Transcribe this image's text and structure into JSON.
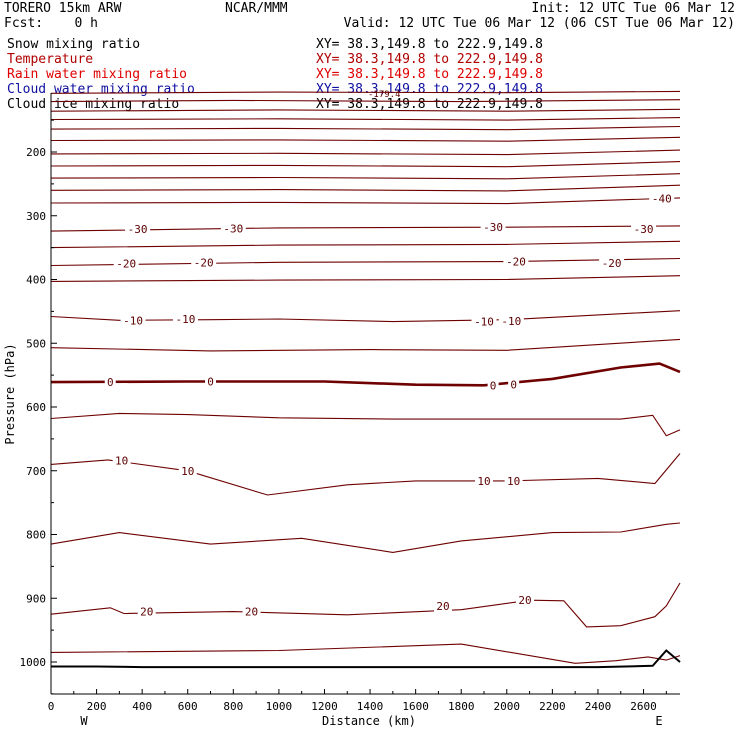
{
  "header": {
    "model": "TORERO  15km ARW",
    "center": "NCAR/MMM",
    "init": "Init: 12 UTC Tue 06 Mar 12",
    "fcst": "Fcst:    0 h",
    "valid": "Valid: 12 UTC Tue 06 Mar 12 (06 CST Tue 06 Mar 12)"
  },
  "legend": [
    {
      "name": "Snow mixing ratio",
      "xy": "XY=  38.3,149.8 to 222.9,149.8",
      "color": "#000000"
    },
    {
      "name": "Temperature",
      "xy": "XY=  38.3,149.8 to 222.9,149.8",
      "color": "#b00000"
    },
    {
      "name": "Rain water mixing ratio",
      "xy": "XY=  38.3,149.8 to 222.9,149.8",
      "color": "#e00000"
    },
    {
      "name": "Cloud water mixing ratio",
      "xy": "XY=  38.3,149.8 to 222.9,149.8",
      "color": "#1010a0"
    },
    {
      "name": "Cloud ice mixing ratio",
      "xy": "XY=  38.3,149.8 to 222.9,149.8",
      "color": "#000000"
    }
  ],
  "legend_overlap_label": "-179.4",
  "chart_data": {
    "type": "line",
    "xlabel": "Distance (km)",
    "ylabel": "Pressure (hPa)",
    "x_end_labels": {
      "left": "W",
      "right": "E"
    },
    "xlim": [
      0,
      2760
    ],
    "ylim_hpa": [
      1050,
      100
    ],
    "xticks": [
      0,
      200,
      400,
      600,
      800,
      1000,
      1200,
      1400,
      1600,
      1800,
      2000,
      2200,
      2400,
      2600
    ],
    "yticks": [
      200,
      300,
      400,
      500,
      600,
      700,
      800,
      900,
      1000
    ],
    "color_contour": "#6e0000",
    "color_terrain": "#000000",
    "zero_isotherm_bold": true,
    "isotherms": [
      {
        "t": -60,
        "pts": [
          [
            0,
            108
          ],
          [
            1000,
            106
          ],
          [
            2000,
            107
          ],
          [
            2760,
            105
          ]
        ]
      },
      {
        "t": -58,
        "pts": [
          [
            0,
            121
          ],
          [
            800,
            119
          ],
          [
            1800,
            121
          ],
          [
            2760,
            118
          ]
        ]
      },
      {
        "t": -56,
        "pts": [
          [
            0,
            136
          ],
          [
            1000,
            134
          ],
          [
            2000,
            136
          ],
          [
            2760,
            133
          ]
        ]
      },
      {
        "t": -54,
        "pts": [
          [
            0,
            149
          ],
          [
            1000,
            148
          ],
          [
            2000,
            150
          ],
          [
            2760,
            146
          ]
        ]
      },
      {
        "t": -52,
        "pts": [
          [
            0,
            164
          ],
          [
            1000,
            163
          ],
          [
            2000,
            165
          ],
          [
            2760,
            160
          ]
        ]
      },
      {
        "t": -50,
        "pts": [
          [
            0,
            182
          ],
          [
            1000,
            181
          ],
          [
            2000,
            183
          ],
          [
            2760,
            177
          ]
        ]
      },
      {
        "t": -48,
        "pts": [
          [
            0,
            203
          ],
          [
            1000,
            202
          ],
          [
            2000,
            204
          ],
          [
            2760,
            197
          ]
        ]
      },
      {
        "t": -46,
        "pts": [
          [
            0,
            222
          ],
          [
            1000,
            221
          ],
          [
            2000,
            223
          ],
          [
            2760,
            215
          ]
        ]
      },
      {
        "t": -44,
        "pts": [
          [
            0,
            241
          ],
          [
            1000,
            240
          ],
          [
            2000,
            242
          ],
          [
            2760,
            234
          ]
        ]
      },
      {
        "t": -42,
        "pts": [
          [
            0,
            260
          ],
          [
            1000,
            259
          ],
          [
            2000,
            261
          ],
          [
            2760,
            252
          ]
        ]
      },
      {
        "t": -40,
        "pts": [
          [
            0,
            280
          ],
          [
            1000,
            279
          ],
          [
            2000,
            281
          ],
          [
            2760,
            272
          ]
        ]
      },
      {
        "t": -30,
        "pts": [
          [
            0,
            324
          ],
          [
            1000,
            319
          ],
          [
            2000,
            318
          ],
          [
            2760,
            316
          ]
        ]
      },
      {
        "t": -25,
        "pts": [
          [
            0,
            350
          ],
          [
            1000,
            346
          ],
          [
            2000,
            345
          ],
          [
            2760,
            340
          ]
        ]
      },
      {
        "t": -20,
        "pts": [
          [
            0,
            378
          ],
          [
            1000,
            373
          ],
          [
            2000,
            372
          ],
          [
            2760,
            367
          ]
        ]
      },
      {
        "t": -15,
        "pts": [
          [
            0,
            403
          ],
          [
            1000,
            401
          ],
          [
            2000,
            400
          ],
          [
            2760,
            394
          ]
        ]
      },
      {
        "t": -10,
        "pts": [
          [
            0,
            458
          ],
          [
            300,
            464
          ],
          [
            700,
            463
          ],
          [
            1000,
            462
          ],
          [
            1500,
            466
          ],
          [
            2000,
            463
          ],
          [
            2760,
            449
          ]
        ]
      },
      {
        "t": -5,
        "pts": [
          [
            0,
            507
          ],
          [
            700,
            512
          ],
          [
            1400,
            510
          ],
          [
            2000,
            511
          ],
          [
            2760,
            494
          ]
        ]
      },
      {
        "t": 0,
        "pts": [
          [
            0,
            561
          ],
          [
            600,
            560
          ],
          [
            1200,
            560
          ],
          [
            1600,
            565
          ],
          [
            1900,
            566
          ],
          [
            2200,
            556
          ],
          [
            2500,
            538
          ],
          [
            2670,
            532
          ],
          [
            2760,
            545
          ]
        ]
      },
      {
        "t": 5,
        "pts": [
          [
            0,
            618
          ],
          [
            300,
            610
          ],
          [
            600,
            612
          ],
          [
            1000,
            617
          ],
          [
            1500,
            619
          ],
          [
            2000,
            619
          ],
          [
            2500,
            619
          ],
          [
            2640,
            613
          ],
          [
            2700,
            645
          ],
          [
            2760,
            636
          ]
        ]
      },
      {
        "t": 10,
        "pts": [
          [
            0,
            690
          ],
          [
            250,
            683
          ],
          [
            600,
            700
          ],
          [
            950,
            738
          ],
          [
            1300,
            722
          ],
          [
            1600,
            716
          ],
          [
            2000,
            716
          ],
          [
            2400,
            712
          ],
          [
            2650,
            720
          ],
          [
            2760,
            673
          ]
        ]
      },
      {
        "t": 15,
        "pts": [
          [
            0,
            815
          ],
          [
            300,
            797
          ],
          [
            700,
            815
          ],
          [
            1100,
            806
          ],
          [
            1500,
            828
          ],
          [
            1800,
            810
          ],
          [
            2200,
            797
          ],
          [
            2500,
            796
          ],
          [
            2700,
            784
          ],
          [
            2760,
            782
          ]
        ]
      },
      {
        "t": 20,
        "pts": [
          [
            0,
            925
          ],
          [
            260,
            915
          ],
          [
            320,
            924
          ],
          [
            800,
            921
          ],
          [
            1300,
            926
          ],
          [
            1800,
            918
          ],
          [
            2100,
            903
          ],
          [
            2250,
            904
          ],
          [
            2350,
            945
          ],
          [
            2500,
            943
          ],
          [
            2650,
            929
          ],
          [
            2700,
            912
          ],
          [
            2760,
            876
          ]
        ]
      },
      {
        "t": 25,
        "pts": [
          [
            0,
            985
          ],
          [
            1000,
            982
          ],
          [
            1800,
            972
          ],
          [
            2300,
            1002
          ],
          [
            2480,
            998
          ],
          [
            2620,
            992
          ],
          [
            2700,
            997
          ],
          [
            2760,
            990
          ]
        ]
      }
    ],
    "terrain": [
      [
        0,
        1007
      ],
      [
        200,
        1007
      ],
      [
        400,
        1008
      ],
      [
        1000,
        1008
      ],
      [
        1600,
        1008
      ],
      [
        2250,
        1008
      ],
      [
        2400,
        1008
      ],
      [
        2640,
        1006
      ],
      [
        2700,
        982
      ],
      [
        2760,
        1000
      ]
    ],
    "contour_labels": [
      {
        "text": "-40",
        "x": 2680,
        "p": 273
      },
      {
        "text": "-30",
        "x": 380,
        "p": 321
      },
      {
        "text": "-30",
        "x": 800,
        "p": 320
      },
      {
        "text": "-30",
        "x": 1940,
        "p": 318
      },
      {
        "text": "-30",
        "x": 2600,
        "p": 321
      },
      {
        "text": "-20",
        "x": 330,
        "p": 375
      },
      {
        "text": "-20",
        "x": 670,
        "p": 373
      },
      {
        "text": "-20",
        "x": 2040,
        "p": 372
      },
      {
        "text": "-20",
        "x": 2460,
        "p": 374
      },
      {
        "text": "-10",
        "x": 360,
        "p": 464
      },
      {
        "text": "-10",
        "x": 590,
        "p": 462
      },
      {
        "text": "-10",
        "x": 1900,
        "p": 466
      },
      {
        "text": "-10",
        "x": 2020,
        "p": 465
      },
      {
        "text": "0",
        "x": 260,
        "p": 561
      },
      {
        "text": "0",
        "x": 700,
        "p": 560
      },
      {
        "text": "0",
        "x": 1940,
        "p": 566
      },
      {
        "text": "0",
        "x": 2030,
        "p": 565
      },
      {
        "text": "10",
        "x": 310,
        "p": 684
      },
      {
        "text": "10",
        "x": 600,
        "p": 700
      },
      {
        "text": "10",
        "x": 1900,
        "p": 716
      },
      {
        "text": "10",
        "x": 2030,
        "p": 716
      },
      {
        "text": "20",
        "x": 420,
        "p": 921
      },
      {
        "text": "20",
        "x": 880,
        "p": 921
      },
      {
        "text": "20",
        "x": 1720,
        "p": 912
      },
      {
        "text": "20",
        "x": 2080,
        "p": 903
      }
    ]
  }
}
